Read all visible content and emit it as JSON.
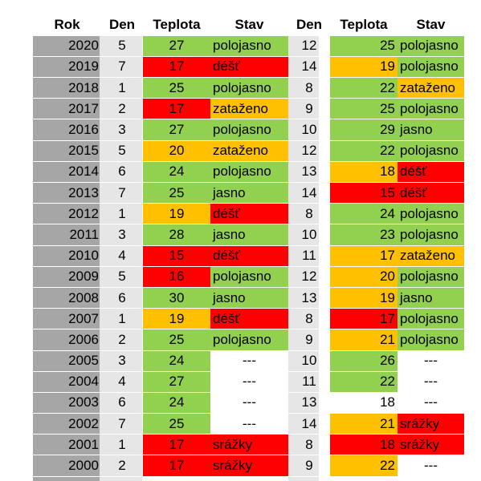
{
  "headers": [
    "Rok",
    "Den",
    "Teplota",
    "Stav",
    "Den",
    "Teplota",
    "Stav"
  ],
  "colors": {
    "green": "#92d050",
    "red": "#ff0000",
    "orange": "#ffc000",
    "white": "#ffffff",
    "gray": "#a6a6a6",
    "light_gray": "#e7e6e6"
  },
  "rows": [
    {
      "rok": "2020",
      "den": "5",
      "tep": "27",
      "tep_c": "green",
      "stav": "polojasno",
      "stav_c": "green",
      "den2": "12",
      "tep2": "25",
      "tep2_c": "green",
      "stav2": "polojasno",
      "stav2_c": "green"
    },
    {
      "rok": "2019",
      "den": "7",
      "tep": "17",
      "tep_c": "red",
      "stav": "déšť",
      "stav_c": "red",
      "den2": "14",
      "tep2": "19",
      "tep2_c": "orange",
      "stav2": "polojasno",
      "stav2_c": "green"
    },
    {
      "rok": "2018",
      "den": "1",
      "tep": "25",
      "tep_c": "green",
      "stav": "polojasno",
      "stav_c": "green",
      "den2": "8",
      "tep2": "22",
      "tep2_c": "green",
      "stav2": "zataženo",
      "stav2_c": "orange"
    },
    {
      "rok": "2017",
      "den": "2",
      "tep": "17",
      "tep_c": "red",
      "stav": "zataženo",
      "stav_c": "orange",
      "den2": "9",
      "tep2": "25",
      "tep2_c": "green",
      "stav2": "polojasno",
      "stav2_c": "green"
    },
    {
      "rok": "2016",
      "den": "3",
      "tep": "27",
      "tep_c": "green",
      "stav": "polojasno",
      "stav_c": "green",
      "den2": "10",
      "tep2": "29",
      "tep2_c": "green",
      "stav2": "jasno",
      "stav2_c": "green"
    },
    {
      "rok": "2015",
      "den": "5",
      "tep": "20",
      "tep_c": "orange",
      "stav": "zataženo",
      "stav_c": "orange",
      "den2": "12",
      "tep2": "22",
      "tep2_c": "green",
      "stav2": "polojasno",
      "stav2_c": "green"
    },
    {
      "rok": "2014",
      "den": "6",
      "tep": "24",
      "tep_c": "green",
      "stav": "polojasno",
      "stav_c": "green",
      "den2": "13",
      "tep2": "18",
      "tep2_c": "orange",
      "stav2": "déšť",
      "stav2_c": "red"
    },
    {
      "rok": "2013",
      "den": "7",
      "tep": "25",
      "tep_c": "green",
      "stav": "jasno",
      "stav_c": "green",
      "den2": "14",
      "tep2": "15",
      "tep2_c": "red",
      "stav2": "déšť",
      "stav2_c": "red"
    },
    {
      "rok": "2012",
      "den": "1",
      "tep": "19",
      "tep_c": "orange",
      "stav": "déšť",
      "stav_c": "red",
      "den2": "8",
      "tep2": "24",
      "tep2_c": "green",
      "stav2": "polojasno",
      "stav2_c": "green"
    },
    {
      "rok": "2011",
      "den": "3",
      "tep": "28",
      "tep_c": "green",
      "stav": "jasno",
      "stav_c": "green",
      "den2": "10",
      "tep2": "23",
      "tep2_c": "green",
      "stav2": "polojasno",
      "stav2_c": "green"
    },
    {
      "rok": "2010",
      "den": "4",
      "tep": "15",
      "tep_c": "red",
      "stav": "déšť",
      "stav_c": "red",
      "den2": "11",
      "tep2": "17",
      "tep2_c": "orange",
      "stav2": "zataženo",
      "stav2_c": "orange"
    },
    {
      "rok": "2009",
      "den": "5",
      "tep": "16",
      "tep_c": "red",
      "stav": "polojasno",
      "stav_c": "green",
      "den2": "12",
      "tep2": "20",
      "tep2_c": "orange",
      "stav2": "polojasno",
      "stav2_c": "green"
    },
    {
      "rok": "2008",
      "den": "6",
      "tep": "30",
      "tep_c": "green",
      "stav": "jasno",
      "stav_c": "green",
      "den2": "13",
      "tep2": "19",
      "tep2_c": "orange",
      "stav2": "jasno",
      "stav2_c": "green"
    },
    {
      "rok": "2007",
      "den": "1",
      "tep": "19",
      "tep_c": "orange",
      "stav": "déšť",
      "stav_c": "red",
      "den2": "8",
      "tep2": "17",
      "tep2_c": "red",
      "stav2": "polojasno",
      "stav2_c": "green"
    },
    {
      "rok": "2006",
      "den": "2",
      "tep": "25",
      "tep_c": "green",
      "stav": "polojasno",
      "stav_c": "green",
      "den2": "9",
      "tep2": "21",
      "tep2_c": "orange",
      "stav2": "polojasno",
      "stav2_c": "green"
    },
    {
      "rok": "2005",
      "den": "3",
      "tep": "24",
      "tep_c": "green",
      "stav": "---",
      "stav_c": "white",
      "den2": "10",
      "tep2": "26",
      "tep2_c": "green",
      "stav2": "---",
      "stav2_c": "white"
    },
    {
      "rok": "2004",
      "den": "4",
      "tep": "27",
      "tep_c": "green",
      "stav": "---",
      "stav_c": "white",
      "den2": "11",
      "tep2": "22",
      "tep2_c": "green",
      "stav2": "---",
      "stav2_c": "white"
    },
    {
      "rok": "2003",
      "den": "6",
      "tep": "24",
      "tep_c": "green",
      "stav": "---",
      "stav_c": "white",
      "den2": "13",
      "tep2": "18",
      "tep2_c": "white",
      "stav2": "---",
      "stav2_c": "white"
    },
    {
      "rok": "2002",
      "den": "7",
      "tep": "25",
      "tep_c": "green",
      "stav": "---",
      "stav_c": "white",
      "den2": "14",
      "tep2": "21",
      "tep2_c": "orange",
      "stav2": "srážky",
      "stav2_c": "red"
    },
    {
      "rok": "2001",
      "den": "1",
      "tep": "17",
      "tep_c": "red",
      "stav": "srážky",
      "stav_c": "red",
      "den2": "8",
      "tep2": "18",
      "tep2_c": "red",
      "stav2": "srážky",
      "stav2_c": "red"
    },
    {
      "rok": "2000",
      "den": "2",
      "tep": "17",
      "tep_c": "red",
      "stav": "srážky",
      "stav_c": "red",
      "den2": "9",
      "tep2": "22",
      "tep2_c": "orange",
      "stav2": "---",
      "stav2_c": "white"
    }
  ]
}
